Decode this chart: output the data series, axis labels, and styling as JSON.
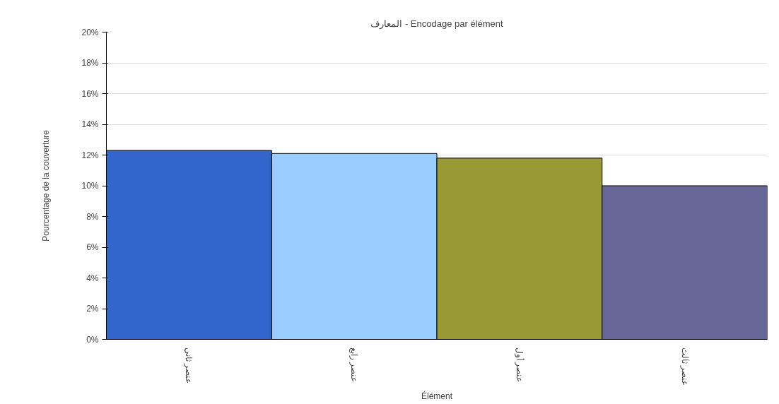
{
  "chart_data": {
    "type": "bar",
    "title": "المعارف - Encodage par élément",
    "xlabel": "Élément",
    "ylabel": "Pourcentage de la couverture",
    "categories": [
      "عنصر ثاني",
      "عنصر رابع",
      "عنصر أول",
      "عنصر ثالث"
    ],
    "values": [
      12.3,
      12.1,
      11.8,
      10.0
    ],
    "colors": [
      "#3366cc",
      "#99ccff",
      "#999933",
      "#666699"
    ],
    "ylim": [
      0,
      20
    ],
    "yticks": [
      {
        "value": 0,
        "label": "0%"
      },
      {
        "value": 2,
        "label": "2%"
      },
      {
        "value": 4,
        "label": "4%"
      },
      {
        "value": 6,
        "label": "6%"
      },
      {
        "value": 8,
        "label": "8%"
      },
      {
        "value": 10,
        "label": "10%"
      },
      {
        "value": 12,
        "label": "12%"
      },
      {
        "value": 14,
        "label": "14%"
      },
      {
        "value": 16,
        "label": "16%"
      },
      {
        "value": 18,
        "label": "18%"
      },
      {
        "value": 20,
        "label": "20%"
      }
    ],
    "grid": "y"
  }
}
